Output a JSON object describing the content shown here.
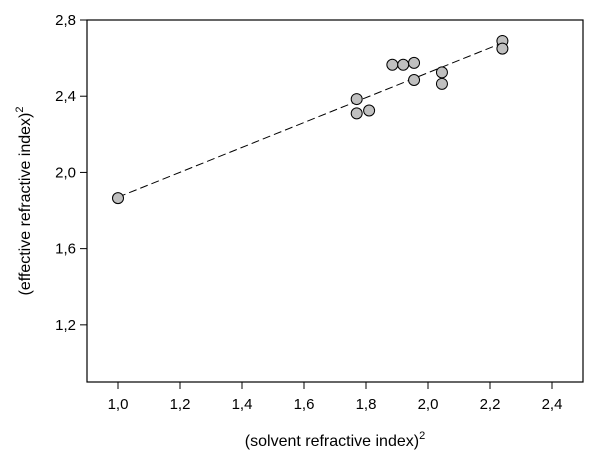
{
  "chart_data": {
    "type": "scatter",
    "title": "",
    "xlabel": "(solvent refractive index)",
    "xlabel_superscript": "2",
    "ylabel": "(effective refractive index)",
    "ylabel_superscript": "2",
    "xlim": [
      0.9,
      2.5
    ],
    "ylim": [
      0.9,
      2.8
    ],
    "x_ticks": [
      {
        "value": 1.0,
        "label": "1,0"
      },
      {
        "value": 1.2,
        "label": "1,2"
      },
      {
        "value": 1.4,
        "label": "1,4"
      },
      {
        "value": 1.6,
        "label": "1,6"
      },
      {
        "value": 1.8,
        "label": "1,8"
      },
      {
        "value": 2.0,
        "label": "2,0"
      },
      {
        "value": 2.2,
        "label": "2,2"
      },
      {
        "value": 2.4,
        "label": "2,4"
      }
    ],
    "y_ticks": [
      {
        "value": 1.2,
        "label": "1,2"
      },
      {
        "value": 1.6,
        "label": "1,6"
      },
      {
        "value": 2.0,
        "label": "2,0"
      },
      {
        "value": 2.4,
        "label": "2,4"
      },
      {
        "value": 2.8,
        "label": "2,8"
      }
    ],
    "grid": false,
    "legend": "none",
    "marker_fill": "#c0c0c0",
    "marker_stroke": "#000000",
    "points": [
      {
        "x": 1.0,
        "y": 1.865
      },
      {
        "x": 1.77,
        "y": 2.385
      },
      {
        "x": 1.77,
        "y": 2.31
      },
      {
        "x": 1.81,
        "y": 2.325
      },
      {
        "x": 1.885,
        "y": 2.565
      },
      {
        "x": 1.92,
        "y": 2.565
      },
      {
        "x": 1.955,
        "y": 2.575
      },
      {
        "x": 1.955,
        "y": 2.485
      },
      {
        "x": 2.045,
        "y": 2.525
      },
      {
        "x": 2.045,
        "y": 2.465
      },
      {
        "x": 2.24,
        "y": 2.69
      },
      {
        "x": 2.24,
        "y": 2.65
      }
    ],
    "fit_line": {
      "style": "dashed",
      "x": [
        1.0,
        2.24
      ],
      "y": [
        1.87,
        2.68
      ]
    }
  }
}
